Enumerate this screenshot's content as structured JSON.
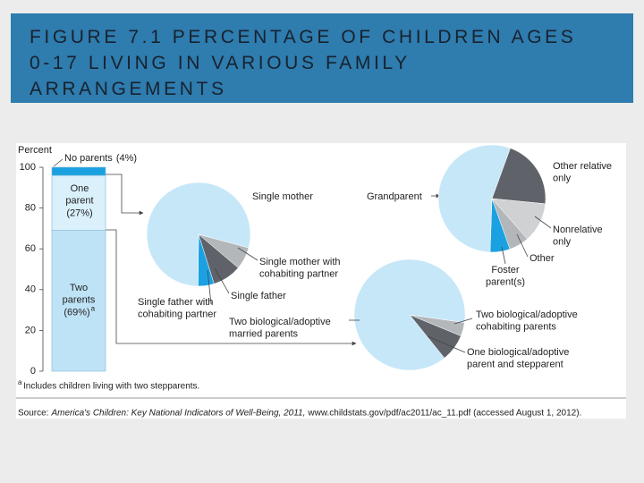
{
  "header": {
    "title": "FIGURE 7.1 PERCENTAGE OF CHILDREN AGES 0-17 LIVING IN VARIOUS FAMILY ARRANGEMENTS"
  },
  "chart_data": [
    {
      "type": "bar",
      "stacked": true,
      "ylabel": "Percent",
      "ylim": [
        0,
        100
      ],
      "yticks": [
        0,
        20,
        40,
        60,
        80,
        100
      ],
      "categories": [
        null
      ],
      "series": [
        {
          "name": "Two parents",
          "values": [
            69
          ],
          "value_labels": [
            "(69%)"
          ],
          "color": "#bfe3f6"
        },
        {
          "name": "One parent",
          "values": [
            27
          ],
          "value_labels": [
            "(27%)"
          ],
          "color": "#daf0fb"
        },
        {
          "name": "No parents",
          "values": [
            4
          ],
          "value_labels": [
            "(4%)"
          ],
          "color": "#1ba1e2"
        }
      ]
    },
    {
      "type": "pie",
      "categories": [
        "Single mother with cohabiting partner",
        "Single father",
        "Single father with cohabiting partner",
        "Single mother"
      ],
      "values": [
        7,
        9,
        5,
        79
      ],
      "colors": [
        "#b4b7ba",
        "#5f6369",
        "#1ba1e2",
        "#c6e7f8"
      ]
    },
    {
      "type": "pie",
      "categories": [
        "Other relative only",
        "Nonrelative only",
        "Other",
        "Foster parent(s)",
        "Grandparent"
      ],
      "values": [
        21,
        12,
        6,
        6,
        55
      ],
      "colors": [
        "#5f6369",
        "#cfd1d3",
        "#b4b7ba",
        "#1ba1e2",
        "#c6e7f8"
      ]
    },
    {
      "type": "pie",
      "categories": [
        "Two biological/adoptive cohabiting parents",
        "One biological/adoptive parent and stepparent",
        "Two biological/adoptive married parents"
      ],
      "values": [
        4,
        8,
        88
      ],
      "colors": [
        "#b4b7ba",
        "#5f6369",
        "#c6e7f8"
      ]
    }
  ],
  "footnote": {
    "marker": "a",
    "text": "Includes children living with two stepparents."
  },
  "source": {
    "label": "Source:",
    "title": "America's Children: Key National Indicators of Well-Being, 2011,",
    "rest": "www.childstats.gov/pdf/ac2011/ac_11.pdf (accessed August 1, 2012)."
  }
}
